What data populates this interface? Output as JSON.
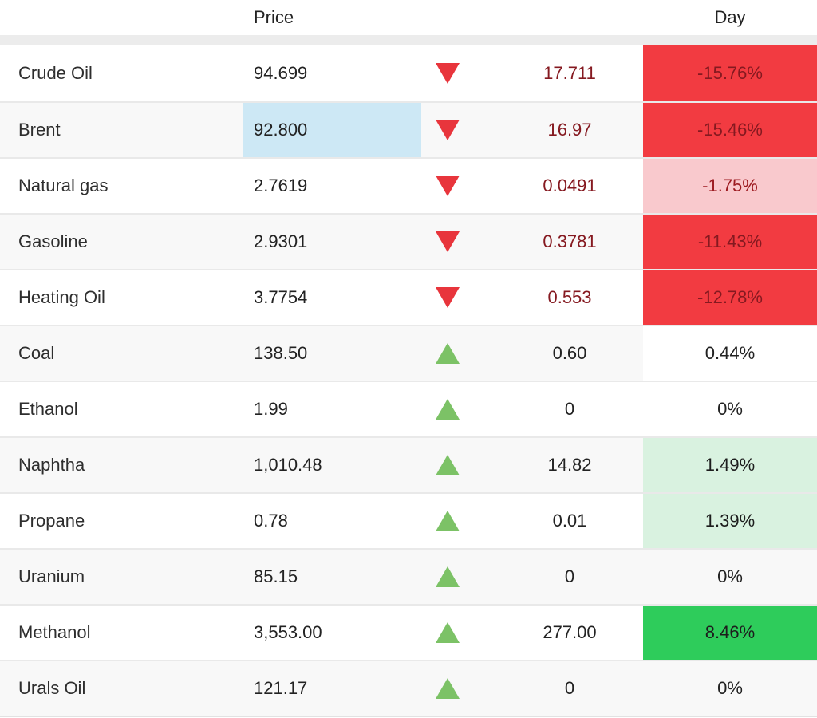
{
  "table": {
    "columns": {
      "price": "Price",
      "day": "Day"
    },
    "colors": {
      "down_strong_bg": "#f23b41",
      "down_light_bg": "#f9c9cd",
      "up_light_bg": "#d9f2e0",
      "up_strong_bg": "#2ecc5b",
      "down_text": "#851920",
      "down_light_text": "#9c191f",
      "arrow_down": "#e8353c",
      "arrow_up": "#7cc266",
      "price_highlight": "#cde8f5"
    },
    "rows": [
      {
        "name": "Crude Oil",
        "price": "94.699",
        "direction": "down",
        "change": "17.711",
        "day": "-15.76%",
        "day_style": "down-strong",
        "price_selected": false
      },
      {
        "name": "Brent",
        "price": "92.800",
        "direction": "down",
        "change": "16.97",
        "day": "-15.46%",
        "day_style": "down-strong",
        "price_selected": true
      },
      {
        "name": "Natural gas",
        "price": "2.7619",
        "direction": "down",
        "change": "0.0491",
        "day": "-1.75%",
        "day_style": "down-light",
        "price_selected": false
      },
      {
        "name": "Gasoline",
        "price": "2.9301",
        "direction": "down",
        "change": "0.3781",
        "day": "-11.43%",
        "day_style": "down-strong",
        "price_selected": false
      },
      {
        "name": "Heating Oil",
        "price": "3.7754",
        "direction": "down",
        "change": "0.553",
        "day": "-12.78%",
        "day_style": "down-strong",
        "price_selected": false
      },
      {
        "name": "Coal",
        "price": "138.50",
        "direction": "up",
        "change": "0.60",
        "day": "0.44%",
        "day_style": "neutral-white",
        "price_selected": false
      },
      {
        "name": "Ethanol",
        "price": "1.99",
        "direction": "up",
        "change": "0",
        "day": "0%",
        "day_style": "neutral-white",
        "price_selected": false
      },
      {
        "name": "Naphtha",
        "price": "1,010.48",
        "direction": "up",
        "change": "14.82",
        "day": "1.49%",
        "day_style": "up-light",
        "price_selected": false
      },
      {
        "name": "Propane",
        "price": "0.78",
        "direction": "up",
        "change": "0.01",
        "day": "1.39%",
        "day_style": "up-light",
        "price_selected": false
      },
      {
        "name": "Uranium",
        "price": "85.15",
        "direction": "up",
        "change": "0",
        "day": "0%",
        "day_style": "neutral",
        "price_selected": false
      },
      {
        "name": "Methanol",
        "price": "3,553.00",
        "direction": "up",
        "change": "277.00",
        "day": "8.46%",
        "day_style": "up-strong",
        "price_selected": false
      },
      {
        "name": "Urals Oil",
        "price": "121.17",
        "direction": "up",
        "change": "0",
        "day": "0%",
        "day_style": "neutral",
        "price_selected": false
      }
    ]
  }
}
